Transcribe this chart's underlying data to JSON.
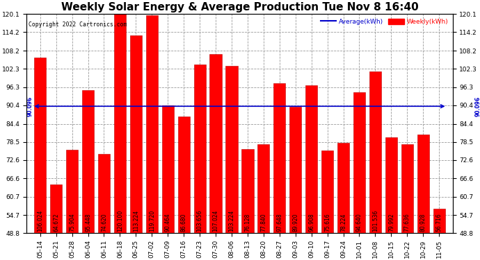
{
  "title": "Weekly Solar Energy & Average Production Tue Nov 8 16:40",
  "copyright": "Copyright 2022 Cartronics.com",
  "categories": [
    "05-14",
    "05-21",
    "05-28",
    "06-04",
    "06-11",
    "06-18",
    "06-25",
    "07-02",
    "07-09",
    "07-16",
    "07-23",
    "07-30",
    "08-06",
    "08-13",
    "08-20",
    "08-27",
    "09-03",
    "09-10",
    "09-17",
    "09-24",
    "10-01",
    "10-08",
    "10-15",
    "10-22",
    "10-29",
    "11-05"
  ],
  "values": [
    106.024,
    64.672,
    75.904,
    95.448,
    74.62,
    120.1,
    113.224,
    119.72,
    90.464,
    86.68,
    103.656,
    107.024,
    103.224,
    76.128,
    77.84,
    97.648,
    89.92,
    96.908,
    75.616,
    78.224,
    94.64,
    101.536,
    79.992,
    77.636,
    80.928,
    56.716
  ],
  "average": 90.096,
  "bar_color": "#ff0000",
  "average_color": "#0000cc",
  "bar_edge_color": "#bb0000",
  "ylim_min": 48.8,
  "ylim_max": 120.1,
  "yticks": [
    48.8,
    54.7,
    60.7,
    66.6,
    72.6,
    78.5,
    84.4,
    90.4,
    96.3,
    102.3,
    108.2,
    114.2,
    120.1
  ],
  "legend_avg_label": "Average(kWh)",
  "legend_weekly_label": "Weekly(kWh)",
  "avg_label": "90.096",
  "background_color": "#ffffff",
  "grid_color": "#999999",
  "title_fontsize": 11,
  "tick_fontsize": 6.5,
  "value_fontsize": 5.5
}
